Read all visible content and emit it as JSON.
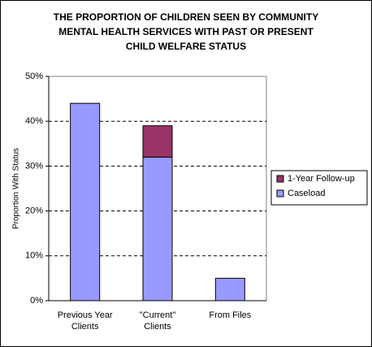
{
  "chart_data": {
    "type": "stacked-bar",
    "title": [
      "THE PROPORTION OF CHILDREN SEEN BY COMMUNITY",
      "MENTAL HEALTH SERVICES WITH PAST OR PRESENT",
      "CHILD WELFARE STATUS"
    ],
    "y_label": "Proportion With Status",
    "categories": [
      [
        "Previous Year",
        "Clients"
      ],
      [
        "\"Current\"",
        "Clients"
      ],
      [
        "From Files"
      ]
    ],
    "series": [
      {
        "name": "Caseload",
        "color": "#9999ff",
        "values": [
          44,
          32,
          5
        ]
      },
      {
        "name": "1-Year Follow-up",
        "color": "#993366",
        "values": [
          null,
          7,
          null
        ]
      }
    ],
    "ylim": [
      0,
      50
    ],
    "yticks": [
      {
        "value": 0,
        "label": "0%"
      },
      {
        "value": 10,
        "label": "10%"
      },
      {
        "value": 20,
        "label": "20%"
      },
      {
        "value": 30,
        "label": "30%"
      },
      {
        "value": 40,
        "label": "40%"
      },
      {
        "value": 50,
        "label": "50%"
      }
    ],
    "grid": true,
    "legend": "right"
  }
}
